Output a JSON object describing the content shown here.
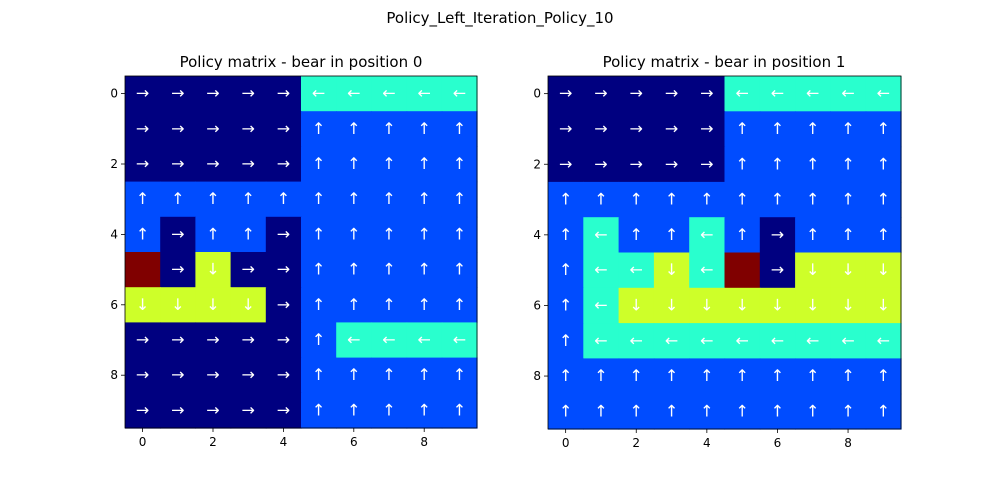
{
  "figure_title": "Policy_Left_Iteration_Policy_10",
  "colors": {
    "navy": "#000080",
    "blue": "#004cff",
    "cyan": "#29ffce",
    "lime": "#ceff29",
    "maroon": "#800000"
  },
  "arrow_glyphs": {
    "R": "→",
    "U": "↑",
    "L": "←",
    "D": "↓"
  },
  "chart_data": [
    {
      "type": "heatmap",
      "title": "Policy matrix - bear in position 0",
      "xticks": [
        0,
        2,
        4,
        6,
        8
      ],
      "yticks": [
        0,
        2,
        4,
        6,
        8
      ],
      "xlim": [
        -0.5,
        9.5
      ],
      "ylim": [
        9.5,
        -0.5
      ],
      "grid": false,
      "rows": [
        [
          "R",
          "R",
          "R",
          "R",
          "R",
          "L",
          "L",
          "L",
          "L",
          "L"
        ],
        [
          "R",
          "R",
          "R",
          "R",
          "R",
          "U",
          "U",
          "U",
          "U",
          "U"
        ],
        [
          "R",
          "R",
          "R",
          "R",
          "R",
          "U",
          "U",
          "U",
          "U",
          "U"
        ],
        [
          "U",
          "U",
          "U",
          "U",
          "U",
          "U",
          "U",
          "U",
          "U",
          "U"
        ],
        [
          "U",
          "R",
          "U",
          "U",
          "R",
          "U",
          "U",
          "U",
          "U",
          "U"
        ],
        [
          "X",
          "R",
          "D",
          "R",
          "R",
          "U",
          "U",
          "U",
          "U",
          "U"
        ],
        [
          "D",
          "D",
          "D",
          "D",
          "R",
          "U",
          "U",
          "U",
          "U",
          "U"
        ],
        [
          "R",
          "R",
          "R",
          "R",
          "R",
          "U",
          "L",
          "L",
          "L",
          "L"
        ],
        [
          "R",
          "R",
          "R",
          "R",
          "R",
          "U",
          "U",
          "U",
          "U",
          "U"
        ],
        [
          "R",
          "R",
          "R",
          "R",
          "R",
          "U",
          "U",
          "U",
          "U",
          "U"
        ]
      ]
    },
    {
      "type": "heatmap",
      "title": "Policy matrix - bear in position 1",
      "xticks": [
        0,
        2,
        4,
        6,
        8
      ],
      "yticks": [
        0,
        2,
        4,
        6,
        8
      ],
      "xlim": [
        -0.5,
        9.5
      ],
      "ylim": [
        9.5,
        -0.5
      ],
      "grid": false,
      "rows": [
        [
          "R",
          "R",
          "R",
          "R",
          "R",
          "L",
          "L",
          "L",
          "L",
          "L"
        ],
        [
          "R",
          "R",
          "R",
          "R",
          "R",
          "U",
          "U",
          "U",
          "U",
          "U"
        ],
        [
          "R",
          "R",
          "R",
          "R",
          "R",
          "U",
          "U",
          "U",
          "U",
          "U"
        ],
        [
          "U",
          "U",
          "U",
          "U",
          "U",
          "U",
          "U",
          "U",
          "U",
          "U"
        ],
        [
          "U",
          "L",
          "U",
          "U",
          "L",
          "U",
          "R",
          "U",
          "U",
          "U"
        ],
        [
          "U",
          "L",
          "L",
          "D",
          "L",
          "X",
          "R",
          "D",
          "D",
          "D"
        ],
        [
          "U",
          "L",
          "D",
          "D",
          "D",
          "D",
          "D",
          "D",
          "D",
          "D"
        ],
        [
          "U",
          "L",
          "L",
          "L",
          "L",
          "L",
          "L",
          "L",
          "L",
          "L"
        ],
        [
          "U",
          "U",
          "U",
          "U",
          "U",
          "U",
          "U",
          "U",
          "U",
          "U"
        ],
        [
          "U",
          "U",
          "U",
          "U",
          "U",
          "U",
          "U",
          "U",
          "U",
          "U"
        ]
      ]
    }
  ]
}
